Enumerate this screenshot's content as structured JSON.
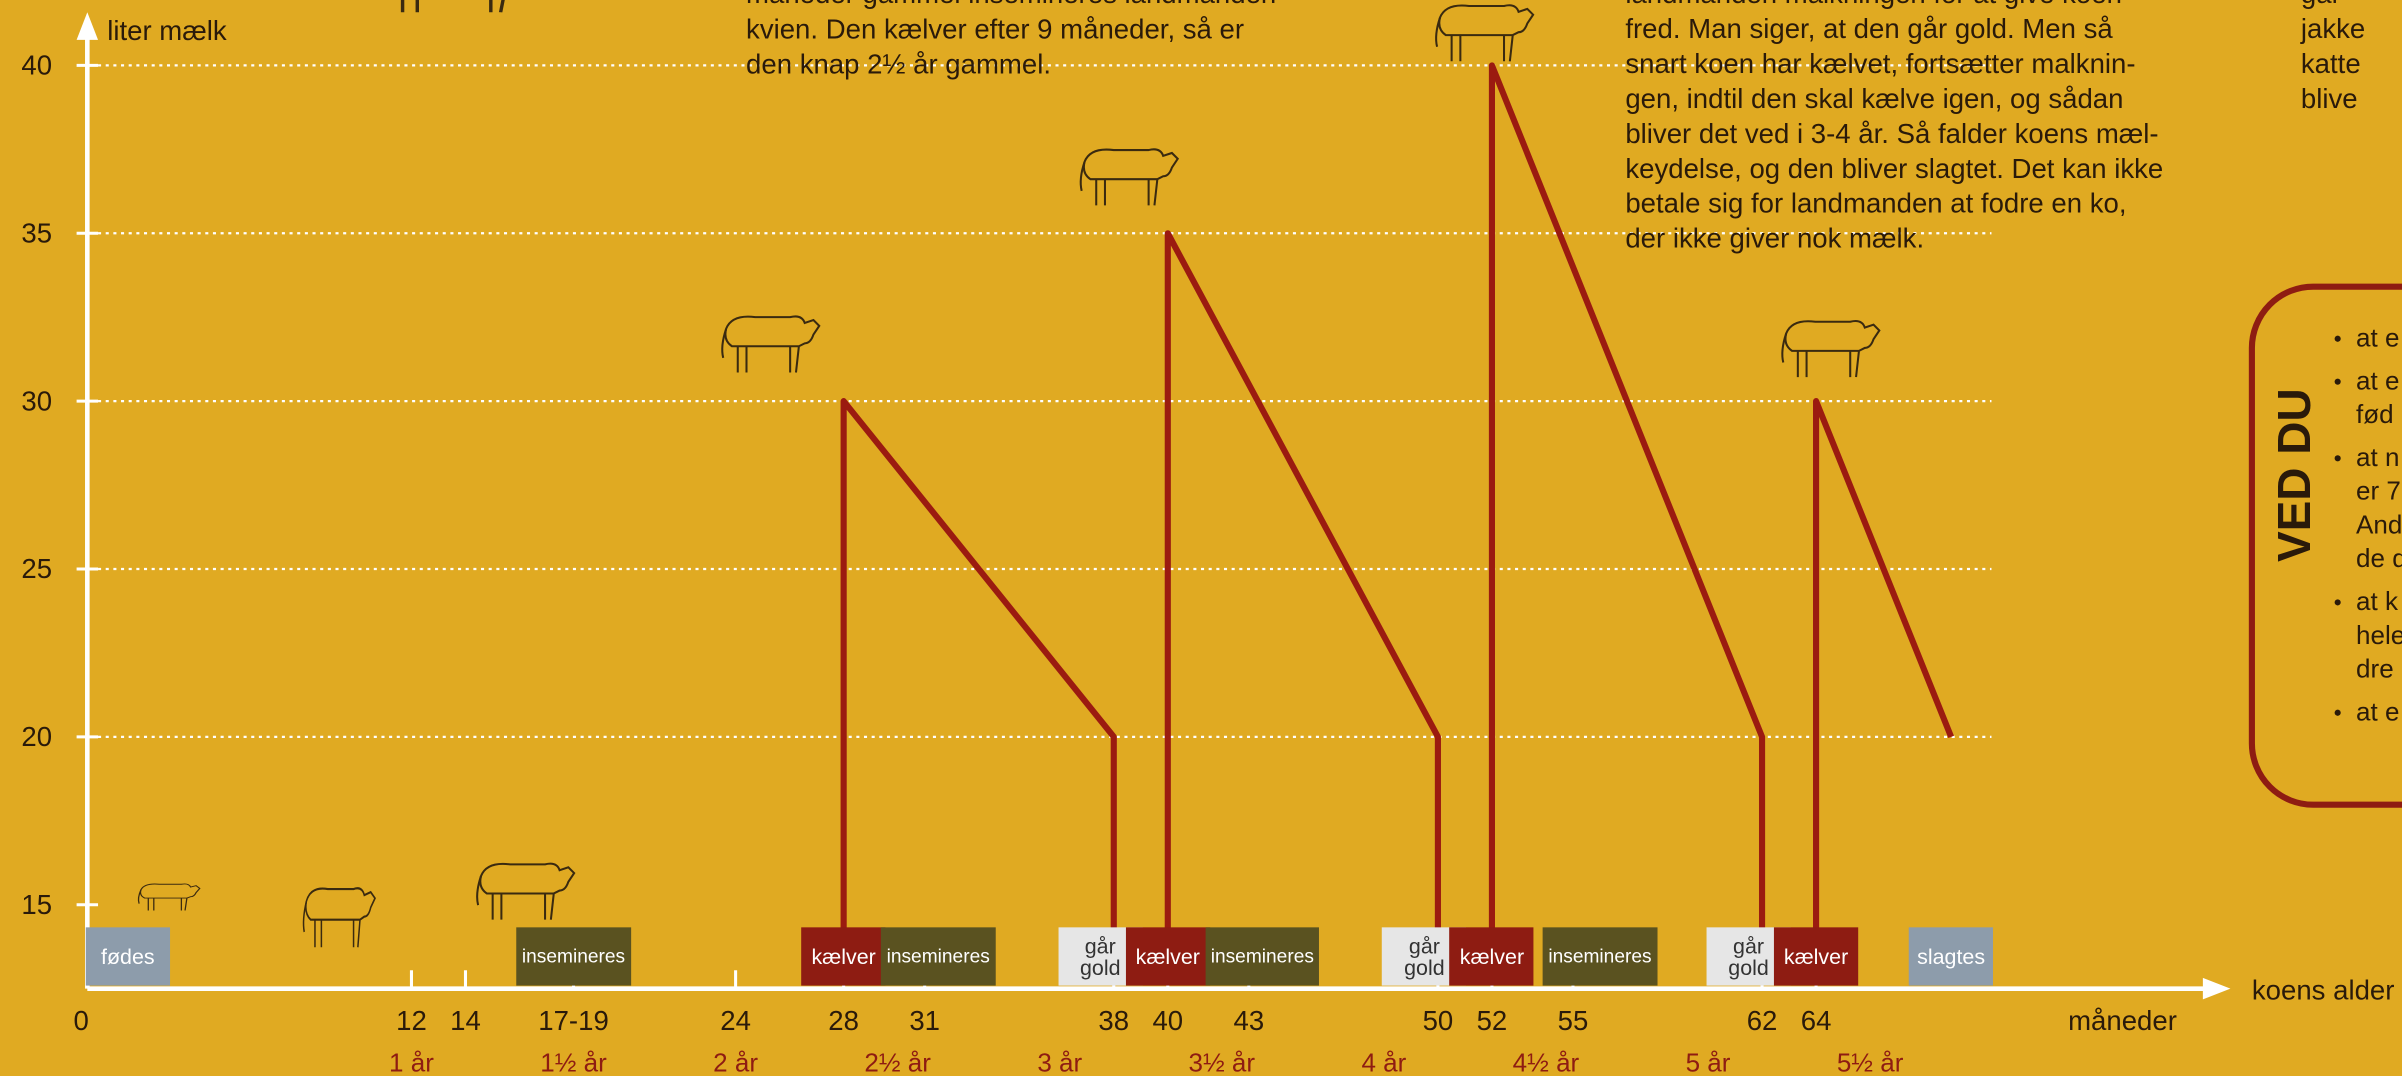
{
  "chart_data": {
    "type": "line",
    "ylabel": "liter mælk",
    "xlabel": "måneder",
    "x_arrow_label": "koens alder",
    "xlim": [
      0,
      79
    ],
    "ylim": [
      12.5,
      41.4
    ],
    "xticks": [
      0,
      12,
      14,
      {
        "value": 18,
        "label": "17-19"
      },
      24,
      28,
      31,
      38,
      40,
      43,
      50,
      52,
      55,
      62,
      64
    ],
    "year_ticks": [
      {
        "value": 12,
        "label": "1 år"
      },
      {
        "value": 18,
        "label": "1½ år"
      },
      {
        "value": 24,
        "label": "2 år"
      },
      {
        "value": 30,
        "label": "2½ år"
      },
      {
        "value": 36,
        "label": "3 år"
      },
      {
        "value": 42,
        "label": "3½ år"
      },
      {
        "value": 48,
        "label": "4 år"
      },
      {
        "value": 54,
        "label": "4½ år"
      },
      {
        "value": 60,
        "label": "5 år"
      },
      {
        "value": 66,
        "label": "5½ år"
      }
    ],
    "yticks": [
      15,
      20,
      25,
      30,
      35,
      40
    ],
    "grid": true,
    "x": [
      28,
      28,
      38,
      38,
      null,
      40,
      40,
      50,
      50,
      null,
      52,
      52,
      62,
      62,
      null,
      64,
      64,
      69
    ],
    "values": [
      14.3,
      30,
      20,
      14.3,
      null,
      14.3,
      35,
      20,
      14.3,
      null,
      14.3,
      40,
      20,
      14.3,
      null,
      14.3,
      30,
      20
    ],
    "color": "#9b1b10",
    "events": [
      {
        "label": "fødes",
        "x": 1.5,
        "color": "#8d9cab",
        "text_color": "#ffffff"
      },
      {
        "label": "insemineres",
        "x": 18,
        "color": "#5a5220",
        "text_color": "#ffffff"
      },
      {
        "label": "kælver",
        "x": 28,
        "color": "#8e1c12",
        "text_color": "#ffffff"
      },
      {
        "label": "insemineres",
        "x": 31.5,
        "color": "#5a5220",
        "text_color": "#ffffff"
      },
      {
        "label": "går gold",
        "x": 37.5,
        "color": "#e6e6e6",
        "text_color": "#333333"
      },
      {
        "label": "kælver",
        "x": 40,
        "color": "#8e1c12",
        "text_color": "#ffffff"
      },
      {
        "label": "insemineres",
        "x": 43.5,
        "color": "#5a5220",
        "text_color": "#ffffff"
      },
      {
        "label": "går gold",
        "x": 49.5,
        "color": "#e6e6e6",
        "text_color": "#333333"
      },
      {
        "label": "kælver",
        "x": 52,
        "color": "#8e1c12",
        "text_color": "#ffffff"
      },
      {
        "label": "insemineres",
        "x": 56,
        "color": "#5a5220",
        "text_color": "#ffffff"
      },
      {
        "label": "går gold",
        "x": 61.5,
        "color": "#e6e6e6",
        "text_color": "#333333"
      },
      {
        "label": "kælver",
        "x": 64,
        "color": "#8e1c12",
        "text_color": "#ffffff"
      },
      {
        "label": "slagtes",
        "x": 69,
        "color": "#8d9cab",
        "text_color": "#ffffff"
      }
    ]
  },
  "texts": {
    "paragraph_1": [
      "måneder gammel insemineres landmanden",
      "kvien. Den kælver efter 9 måneder, så er",
      "den knap 2½ år gammel."
    ],
    "paragraph_2": [
      "landmanden malkningen for at give koen",
      "fred. Man siger, at den går gold. Men så",
      "snart koen har kælvet, fortsætter malknin-",
      "gen, indtil den skal kælve igen, og sådan",
      "bliver det ved i 3-4 år. Så falder koens mæl-",
      "keydelse, og den bliver slagtet. Det kan ikke",
      "betale sig for landmanden at fodre en ko,",
      "der ikke giver nok mælk."
    ],
    "paragraph_3": [
      "gar",
      "jakke",
      "katte",
      "blive"
    ],
    "ved_du": {
      "title": "VED DU",
      "bullets": [
        [
          "at e"
        ],
        [
          "at e",
          "fød"
        ],
        [
          "at n",
          "er 7",
          "And",
          "de d"
        ],
        [
          "at k",
          "hele",
          "dre"
        ],
        [
          "at e"
        ]
      ]
    }
  }
}
